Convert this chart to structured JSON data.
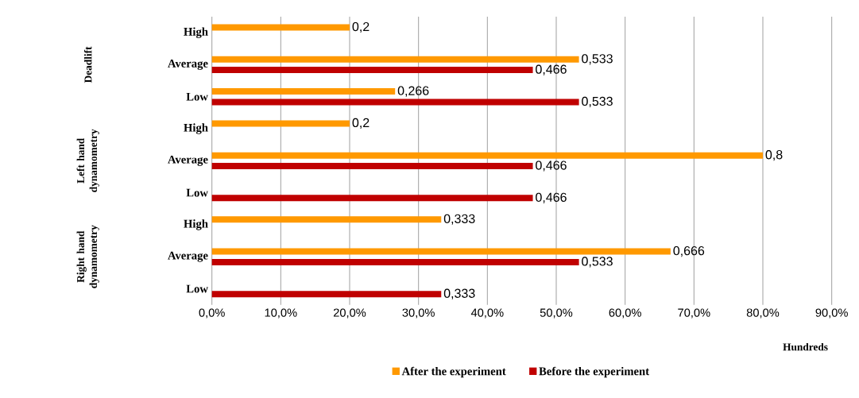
{
  "chart_data": {
    "type": "bar",
    "orientation": "horizontal",
    "categories": [
      "High",
      "Average",
      "Low",
      "High",
      "Average",
      "Low",
      "High",
      "Average",
      "Low"
    ],
    "xlabel": "Hundreds",
    "annotations": [
      "Deadlift",
      "Left hand dynamometry",
      "Right hand dynamometry"
    ],
    "series": [
      {
        "name": "After the experiment",
        "color": "#ff9900",
        "values": [
          0.2,
          0.533,
          0.266,
          0.2,
          0.8,
          null,
          0.333,
          0.666,
          null
        ],
        "value_labels": [
          "0,2",
          "0,533",
          "0,266",
          "0,2",
          "0,8",
          null,
          "0,333",
          "0,666",
          null
        ]
      },
      {
        "name": "Before the experiment",
        "color": "#c00000",
        "values": [
          null,
          0.466,
          0.533,
          null,
          0.466,
          0.466,
          null,
          0.533,
          0.333
        ],
        "value_labels": [
          null,
          "0,466",
          "0,533",
          null,
          "0,466",
          "0,466",
          null,
          "0,533",
          "0,333"
        ]
      }
    ],
    "xlim": [
      0,
      0.9
    ],
    "xticks": [
      {
        "value": 0,
        "label": "0,0%"
      },
      {
        "value": 0.1,
        "label": "10,0%"
      },
      {
        "value": 0.2,
        "label": "20,0%"
      },
      {
        "value": 0.3,
        "label": "30,0%"
      },
      {
        "value": 0.4,
        "label": "40,0%"
      },
      {
        "value": 0.5,
        "label": "50,0%"
      },
      {
        "value": 0.6,
        "label": "60,0%"
      },
      {
        "value": 0.7,
        "label": "70,0%"
      },
      {
        "value": 0.8,
        "label": "80,0%"
      },
      {
        "value": 0.9,
        "label": "90,0%"
      }
    ],
    "grid": "x",
    "legend": "bottom"
  }
}
